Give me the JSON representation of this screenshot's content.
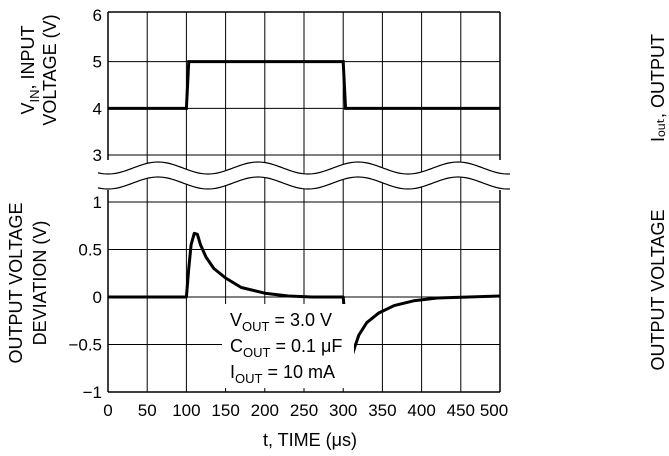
{
  "chart_data": [
    {
      "type": "line",
      "name_panel": "top",
      "ylabel_line1_pre": "V",
      "ylabel_line1_sub": "IN",
      "ylabel_line1_post": ", INPUT",
      "ylabel_line2": "VOLTAGE (V)",
      "yticks": [
        "3",
        "4",
        "5",
        "6"
      ],
      "ylim": [
        3,
        6
      ],
      "xlim": [
        0,
        500
      ],
      "x": [
        0,
        100,
        103,
        300,
        303,
        500
      ],
      "y": [
        4,
        4,
        5,
        5,
        4,
        4
      ]
    },
    {
      "type": "line",
      "name_panel": "bottom",
      "ylabel_line1": "OUTPUT VOLTAGE",
      "ylabel_line2": "DEVIATION (V)",
      "yticks": [
        "1",
        "0.5",
        "0",
        "−0.5",
        "−1"
      ],
      "ylim": [
        -1,
        1
      ],
      "xlim": [
        0,
        500
      ],
      "x": [
        0,
        100,
        103,
        106,
        110,
        114,
        118,
        125,
        135,
        150,
        170,
        200,
        230,
        260,
        300,
        303,
        306,
        309,
        312,
        315,
        320,
        330,
        345,
        365,
        390,
        420,
        460,
        500
      ],
      "y": [
        0,
        0,
        0.3,
        0.55,
        0.67,
        0.66,
        0.55,
        0.42,
        0.3,
        0.2,
        0.1,
        0.04,
        0.01,
        0,
        0,
        -0.3,
        -0.5,
        -0.6,
        -0.6,
        -0.52,
        -0.4,
        -0.27,
        -0.17,
        -0.09,
        -0.04,
        -0.01,
        0,
        0.01
      ]
    }
  ],
  "xaxis": {
    "ticks": [
      "0",
      "50",
      "100",
      "150",
      "200",
      "250",
      "300",
      "350",
      "400",
      "450",
      "500"
    ],
    "label_pre": "t, TIME (",
    "label_mu": "μ",
    "label_post": "s)"
  },
  "annotation": {
    "line1": {
      "pre": "V",
      "sub": "OUT",
      "post": " = 3.0 V"
    },
    "line2": {
      "pre": "C",
      "sub": "OUT",
      "post": " = 0.1 μF"
    },
    "line3": {
      "pre": "I",
      "sub": "OUT",
      "post": " = 10 mA"
    }
  },
  "right_labels": {
    "top": "Iₒᵤₜ, OUTPUT",
    "bottom": "OUTPUT VOLTAGE"
  }
}
